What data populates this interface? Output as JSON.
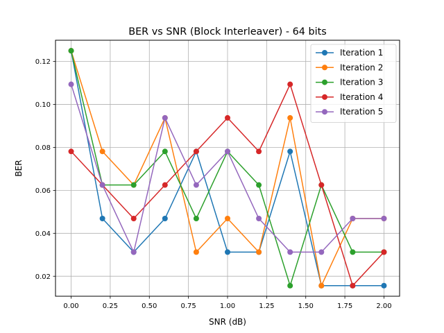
{
  "chart_data": {
    "type": "line",
    "title": "BER vs SNR (Block Interleaver) - 64 bits",
    "xlabel": "SNR (dB)",
    "ylabel": "BER",
    "xlim": [
      -0.1,
      2.1
    ],
    "ylim": [
      0.0107,
      0.1299
    ],
    "xticks": [
      0.0,
      0.25,
      0.5,
      0.75,
      1.0,
      1.25,
      1.5,
      1.75,
      2.0
    ],
    "xtick_labels": [
      "0.00",
      "0.25",
      "0.50",
      "0.75",
      "1.00",
      "1.25",
      "1.50",
      "1.75",
      "2.00"
    ],
    "yticks": [
      0.02,
      0.04,
      0.06,
      0.08,
      0.1,
      0.12
    ],
    "ytick_labels": [
      "0.02",
      "0.04",
      "0.06",
      "0.08",
      "0.10",
      "0.12"
    ],
    "grid": true,
    "legend_position": "top-right",
    "x": [
      0.0,
      0.2,
      0.4,
      0.6,
      0.8,
      1.0,
      1.2,
      1.4,
      1.6,
      1.8,
      2.0
    ],
    "series": [
      {
        "name": "Iteration 1",
        "color": "#1f77b4",
        "values": [
          0.125,
          0.046875,
          0.03125,
          0.046875,
          0.078125,
          0.03125,
          0.03125,
          0.078125,
          0.015625,
          0.015625,
          0.015625
        ]
      },
      {
        "name": "Iteration 2",
        "color": "#ff7f0e",
        "values": [
          0.125,
          0.078125,
          0.0625,
          0.09375,
          0.03125,
          0.046875,
          0.03125,
          0.09375,
          0.015625,
          0.046875,
          0.046875
        ]
      },
      {
        "name": "Iteration 3",
        "color": "#2ca02c",
        "values": [
          0.125,
          0.0625,
          0.0625,
          0.078125,
          0.046875,
          0.078125,
          0.0625,
          0.015625,
          0.0625,
          0.03125,
          0.03125
        ]
      },
      {
        "name": "Iteration 4",
        "color": "#d62728",
        "values": [
          0.078125,
          0.0625,
          0.046875,
          0.0625,
          0.078125,
          0.09375,
          0.078125,
          0.109375,
          0.0625,
          0.015625,
          0.03125
        ]
      },
      {
        "name": "Iteration 5",
        "color": "#9467bd",
        "values": [
          0.109375,
          0.0625,
          0.03125,
          0.09375,
          0.0625,
          0.078125,
          0.046875,
          0.03125,
          0.03125,
          0.046875,
          0.046875
        ]
      }
    ]
  }
}
